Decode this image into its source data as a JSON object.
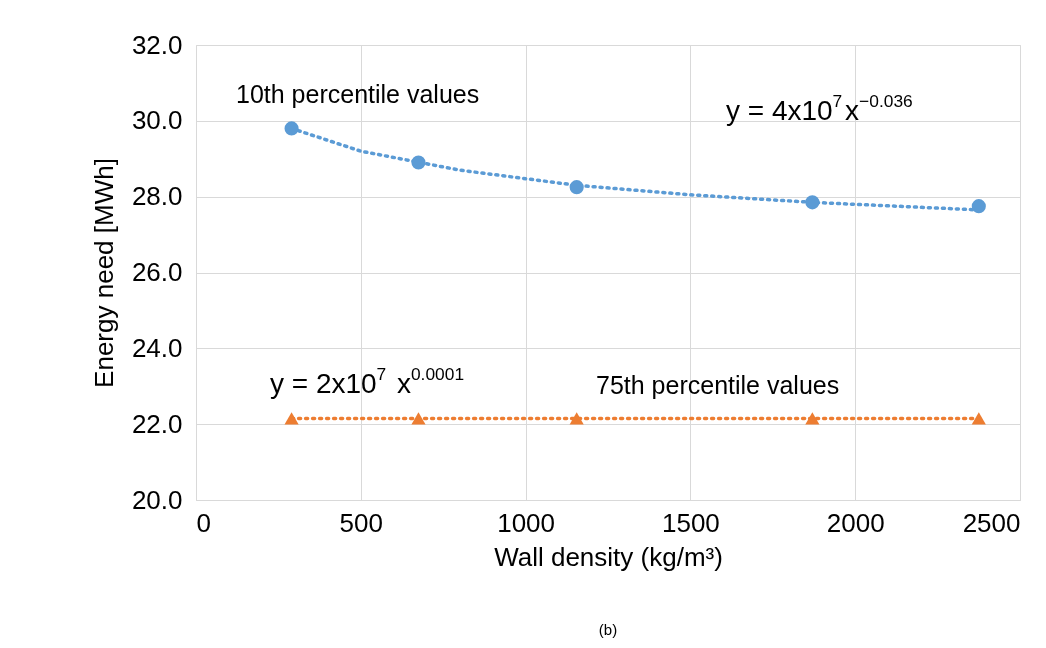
{
  "chart_data": {
    "type": "scatter",
    "subtitle": "(b)",
    "xlabel": "Wall density (kg/m³)",
    "ylabel": "Energy need [MWh]",
    "xlim": [
      0,
      2500
    ],
    "xticks": [
      0,
      500,
      1000,
      1500,
      2000,
      2500
    ],
    "ylim": [
      20,
      32
    ],
    "yticks": [
      {
        "value": 20,
        "label": "20.0"
      },
      {
        "value": 22,
        "label": "22.0"
      },
      {
        "value": 24,
        "label": "24.0"
      },
      {
        "value": 26,
        "label": "26.0"
      },
      {
        "value": 28,
        "label": "28.0"
      },
      {
        "value": 30,
        "label": "30.0"
      },
      {
        "value": 32,
        "label": "32.0"
      }
    ],
    "grid": true,
    "legend": false,
    "series": [
      {
        "name": "10th percentile values",
        "color": "#5b9bd5",
        "marker": "circle",
        "x": [
          290,
          675,
          1155,
          1870,
          2375
        ],
        "values": [
          29.8,
          28.9,
          28.25,
          27.85,
          27.75
        ]
      },
      {
        "name": "75th percentile values",
        "color": "#ed7d31",
        "marker": "triangle",
        "x": [
          290,
          675,
          1155,
          1870,
          2375
        ],
        "values": [
          22.15,
          22.15,
          22.15,
          22.15,
          22.15
        ]
      },
      {
        "type": "line",
        "color": "#5b9bd5",
        "line_style": "dotted",
        "marker": "none",
        "x": [
          290,
          500,
          800,
          1155,
          1500,
          1870,
          2375
        ],
        "values": [
          29.8,
          29.2,
          28.7,
          28.3,
          28.05,
          27.85,
          27.65
        ]
      },
      {
        "type": "line",
        "color": "#ed7d31",
        "line_style": "dotted",
        "marker": "none",
        "x": [
          290,
          2375
        ],
        "values": [
          22.15,
          22.15
        ]
      }
    ],
    "annotations": [
      "y = 4x10$^{7}$x$^{−0.036}$",
      "y = 2x10$^{7}$ x$^{0.0001}$"
    ]
  }
}
